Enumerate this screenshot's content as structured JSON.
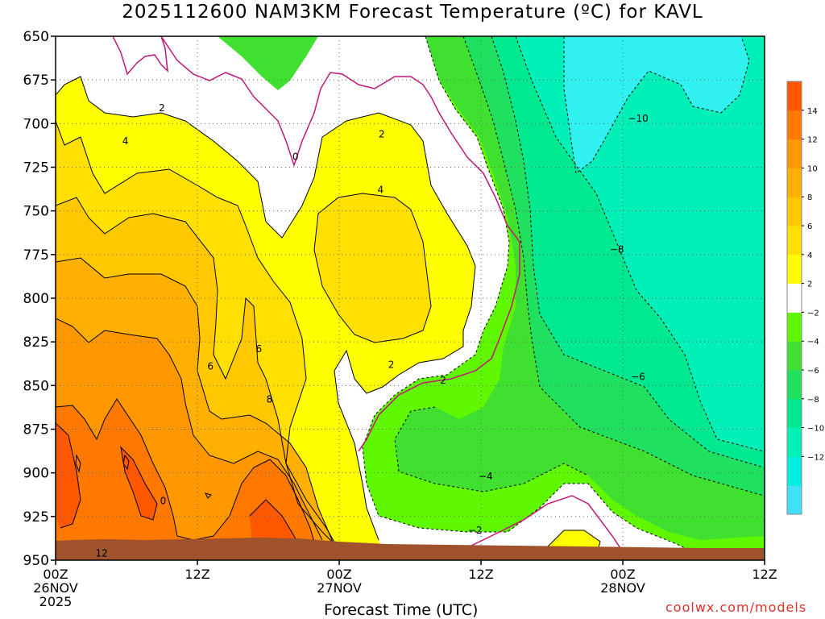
{
  "title": "2025112600 NAM3KM Forecast Temperature (ºC) for KAVL",
  "watermark": "coolwx.com/models",
  "chart_data": {
    "type": "heatmap",
    "title": "2025112600 NAM3KM Forecast Temperature (ºC) for KAVL",
    "xlabel": "Forecast Time (UTC)",
    "ylabel": "",
    "x_range_hours": [
      0,
      60
    ],
    "y_range": [
      650,
      950
    ],
    "y_reversed": true,
    "grid": true,
    "y_ticks": [
      650,
      675,
      700,
      725,
      750,
      775,
      800,
      825,
      850,
      875,
      900,
      925,
      950
    ],
    "x_ticks": [
      {
        "hour": 0,
        "lines": [
          "00Z",
          "26NOV",
          "2025"
        ]
      },
      {
        "hour": 12,
        "lines": [
          "12Z"
        ]
      },
      {
        "hour": 24,
        "lines": [
          "00Z",
          "27NOV"
        ]
      },
      {
        "hour": 36,
        "lines": [
          "12Z"
        ]
      },
      {
        "hour": 48,
        "lines": [
          "00Z",
          "28NOV"
        ]
      },
      {
        "hour": 60,
        "lines": [
          "12Z"
        ]
      }
    ],
    "colorbar": {
      "levels": [
        -14,
        -12,
        -10,
        -8,
        -6,
        -4,
        -2,
        0,
        2,
        4,
        6,
        8,
        10,
        12,
        14,
        16
      ],
      "labels": [
        "14",
        "12",
        "10",
        "8",
        "6",
        "4",
        "2",
        "−2",
        "−4",
        "−6",
        "−8",
        "−10",
        "−12"
      ],
      "colors": [
        "#40e0f8",
        "#00f0e0",
        "#00f0b8",
        "#00e890",
        "#20e060",
        "#40e030",
        "#60f800",
        "#ffffff",
        "#ffff00",
        "#ffe000",
        "#ffc800",
        "#ffb000",
        "#ff9800",
        "#ff7800",
        "#ff5800"
      ]
    },
    "contour_labels": [
      {
        "text": "2",
        "hour": 9.0,
        "p": 691
      },
      {
        "text": "4",
        "hour": 5.9,
        "p": 710
      },
      {
        "text": "0",
        "hour": 20.3,
        "p": 719
      },
      {
        "text": "2",
        "hour": 27.6,
        "p": 706
      },
      {
        "text": "4",
        "hour": 27.5,
        "p": 738
      },
      {
        "text": "6",
        "hour": 13.1,
        "p": 839
      },
      {
        "text": "6",
        "hour": 17.2,
        "p": 829
      },
      {
        "text": "8",
        "hour": 18.1,
        "p": 858
      },
      {
        "text": "2",
        "hour": 28.4,
        "p": 838
      },
      {
        "text": "2",
        "hour": 32.8,
        "p": 847
      },
      {
        "text": "−2",
        "hour": 35.5,
        "p": 933
      },
      {
        "text": "−4",
        "hour": 36.4,
        "p": 902
      },
      {
        "text": "−6",
        "hour": 49.3,
        "p": 845
      },
      {
        "text": "−8",
        "hour": 47.5,
        "p": 772
      },
      {
        "text": "−10",
        "hour": 49.3,
        "p": 697
      },
      {
        "text": "12",
        "hour": 3.9,
        "p": 946
      },
      {
        "text": "0",
        "hour": 9.1,
        "p": 916
      }
    ]
  }
}
